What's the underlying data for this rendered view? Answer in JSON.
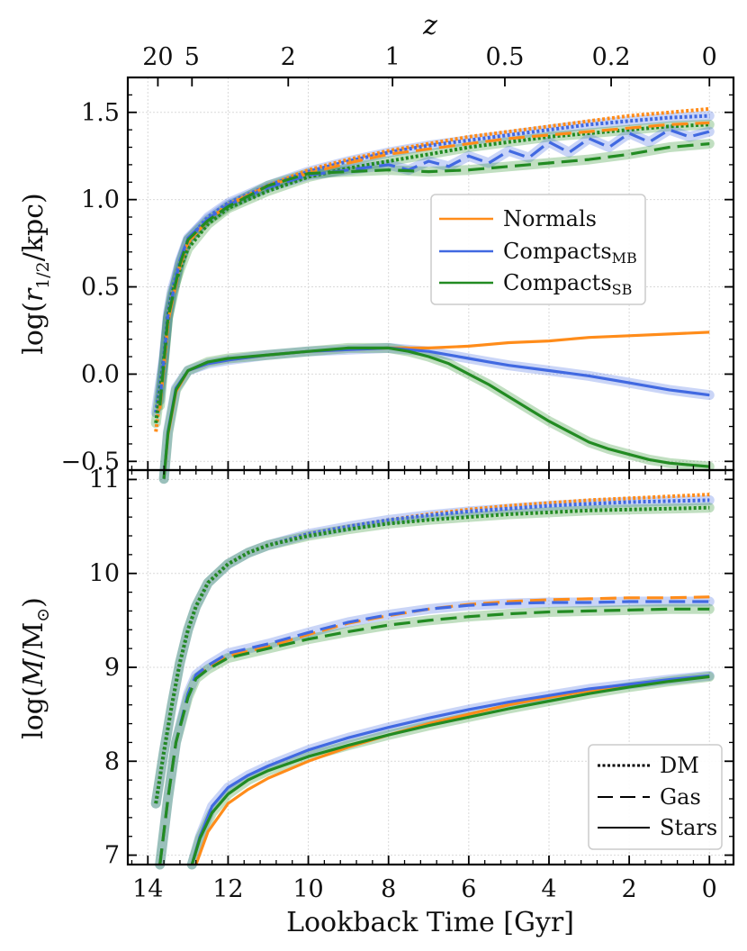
{
  "chart_data": [
    {
      "type": "line",
      "panel": "top",
      "title": "",
      "xlabel": "Lookback Time [Gyr]",
      "ylabel": "log(r1/2/kpc)",
      "ylabel_parts": [
        "log(",
        "r",
        "1/2",
        "/kpc)"
      ],
      "xlim": [
        14.5,
        -0.6
      ],
      "ylim": [
        -0.55,
        1.7
      ],
      "grid": true,
      "yticks": [
        -0.5,
        0.0,
        0.5,
        1.0,
        1.5
      ],
      "ytick_labels": [
        "−0.5",
        "0.0",
        "0.5",
        "1.0",
        "1.5"
      ],
      "top_axis": {
        "label": "z",
        "ticks": [
          {
            "t": 13.75,
            "label": "20"
          },
          {
            "t": 12.9,
            "label": "5"
          },
          {
            "t": 10.5,
            "label": "2"
          },
          {
            "t": 7.9,
            "label": "1"
          },
          {
            "t": 5.1,
            "label": "0.5"
          },
          {
            "t": 2.45,
            "label": "0.2"
          },
          {
            "t": 0.0,
            "label": "0"
          }
        ]
      },
      "legend": {
        "position": "center-right",
        "entries": [
          {
            "label": "Normals",
            "sub": "",
            "color": "#ff8c1a"
          },
          {
            "label": "Compacts",
            "sub": "MB",
            "color": "#4169e1"
          },
          {
            "label": "Compacts",
            "sub": "SB",
            "color": "#228b22"
          }
        ]
      },
      "series": [
        {
          "name": "Normals DM",
          "group": "Normals",
          "style": "dotted",
          "color": "#ff8c1a",
          "x": [
            13.8,
            13.6,
            13.5,
            13.4,
            13.2,
            13.0,
            12.5,
            12.0,
            11.0,
            10.0,
            9.0,
            8.0,
            7.0,
            6.0,
            5.0,
            4.0,
            3.0,
            2.0,
            1.0,
            0.0
          ],
          "y": [
            -0.33,
            0.05,
            0.3,
            0.45,
            0.62,
            0.75,
            0.88,
            0.97,
            1.08,
            1.17,
            1.23,
            1.28,
            1.32,
            1.36,
            1.39,
            1.42,
            1.45,
            1.48,
            1.5,
            1.52
          ]
        },
        {
          "name": "Compacts MB DM",
          "group": "Compacts MB",
          "style": "dotted",
          "color": "#4169e1",
          "x": [
            13.8,
            13.6,
            13.5,
            13.4,
            13.2,
            13.0,
            12.5,
            12.0,
            11.0,
            10.0,
            9.0,
            8.0,
            7.0,
            6.0,
            5.0,
            4.0,
            3.0,
            2.0,
            1.0,
            0.0
          ],
          "y": [
            -0.22,
            0.1,
            0.35,
            0.48,
            0.64,
            0.77,
            0.9,
            0.98,
            1.08,
            1.16,
            1.22,
            1.27,
            1.31,
            1.34,
            1.37,
            1.4,
            1.43,
            1.45,
            1.47,
            1.48
          ]
        },
        {
          "name": "Compacts SB DM",
          "group": "Compacts SB",
          "style": "dotted",
          "color": "#228b22",
          "x": [
            13.8,
            13.6,
            13.5,
            13.4,
            13.2,
            13.0,
            12.5,
            12.0,
            11.0,
            10.0,
            9.0,
            8.0,
            7.0,
            6.0,
            5.0,
            4.0,
            3.0,
            2.0,
            1.0,
            0.0
          ],
          "y": [
            -0.28,
            0.08,
            0.32,
            0.46,
            0.6,
            0.72,
            0.86,
            0.95,
            1.05,
            1.13,
            1.18,
            1.22,
            1.26,
            1.3,
            1.33,
            1.36,
            1.38,
            1.4,
            1.42,
            1.43
          ]
        },
        {
          "name": "Normals Gas",
          "group": "Normals",
          "style": "dashed",
          "color": "#ff8c1a",
          "x": [
            13.7,
            13.5,
            13.2,
            13.0,
            12.5,
            12.0,
            11.0,
            10.0,
            9.0,
            8.0,
            7.0,
            6.0,
            5.0,
            4.0,
            3.0,
            2.0,
            1.0,
            0.0
          ],
          "y": [
            -0.2,
            0.3,
            0.62,
            0.76,
            0.88,
            0.97,
            1.08,
            1.15,
            1.21,
            1.26,
            1.29,
            1.32,
            1.35,
            1.37,
            1.39,
            1.41,
            1.43,
            1.44
          ]
        },
        {
          "name": "Compacts MB Gas",
          "group": "Compacts MB",
          "style": "dashed",
          "color": "#4169e1",
          "x": [
            13.7,
            13.5,
            13.2,
            13.0,
            12.5,
            12.0,
            11.0,
            10.0,
            9.0,
            8.0,
            7.5,
            7.0,
            6.5,
            6.0,
            5.5,
            5.0,
            4.5,
            4.0,
            3.5,
            3.0,
            2.5,
            2.0,
            1.5,
            1.0,
            0.5,
            0.0
          ],
          "y": [
            -0.15,
            0.33,
            0.65,
            0.78,
            0.89,
            0.97,
            1.07,
            1.14,
            1.17,
            1.2,
            1.17,
            1.22,
            1.19,
            1.25,
            1.21,
            1.28,
            1.24,
            1.33,
            1.27,
            1.35,
            1.3,
            1.38,
            1.33,
            1.4,
            1.36,
            1.39
          ]
        },
        {
          "name": "Compacts SB Gas",
          "group": "Compacts SB",
          "style": "dashed",
          "color": "#228b22",
          "x": [
            13.7,
            13.5,
            13.2,
            13.0,
            12.5,
            12.0,
            11.0,
            10.0,
            9.0,
            8.0,
            7.0,
            6.0,
            5.0,
            4.0,
            3.0,
            2.0,
            1.0,
            0.0
          ],
          "y": [
            -0.18,
            0.32,
            0.63,
            0.77,
            0.88,
            0.96,
            1.08,
            1.15,
            1.16,
            1.17,
            1.16,
            1.17,
            1.19,
            1.21,
            1.23,
            1.26,
            1.3,
            1.32
          ]
        },
        {
          "name": "Normals Stars",
          "group": "Normals",
          "style": "solid",
          "color": "#ff8c1a",
          "x": [
            13.6,
            13.5,
            13.3,
            13.0,
            12.5,
            12.0,
            11.0,
            10.0,
            9.0,
            8.0,
            7.0,
            6.0,
            5.0,
            4.0,
            3.0,
            2.0,
            1.0,
            0.0
          ],
          "y": [
            -0.6,
            -0.35,
            -0.1,
            0.02,
            0.06,
            0.08,
            0.11,
            0.13,
            0.14,
            0.15,
            0.15,
            0.16,
            0.18,
            0.19,
            0.21,
            0.22,
            0.23,
            0.24
          ]
        },
        {
          "name": "Compacts MB Stars",
          "group": "Compacts MB",
          "style": "solid",
          "color": "#4169e1",
          "x": [
            13.6,
            13.5,
            13.3,
            13.0,
            12.5,
            12.0,
            11.0,
            10.0,
            9.0,
            8.0,
            7.5,
            7.0,
            6.5,
            6.0,
            5.5,
            5.0,
            4.0,
            3.0,
            2.0,
            1.0,
            0.0
          ],
          "y": [
            -0.6,
            -0.33,
            -0.08,
            0.02,
            0.06,
            0.08,
            0.11,
            0.13,
            0.14,
            0.15,
            0.14,
            0.13,
            0.11,
            0.09,
            0.07,
            0.05,
            0.02,
            -0.01,
            -0.05,
            -0.09,
            -0.12
          ]
        },
        {
          "name": "Compacts SB Stars",
          "group": "Compacts SB",
          "style": "solid",
          "color": "#228b22",
          "x": [
            13.6,
            13.5,
            13.3,
            13.0,
            12.5,
            12.0,
            11.0,
            10.0,
            9.0,
            8.0,
            7.5,
            7.0,
            6.5,
            6.0,
            5.5,
            5.0,
            4.5,
            4.0,
            3.5,
            3.0,
            2.5,
            2.0,
            1.5,
            1.0,
            0.5,
            0.0
          ],
          "y": [
            -0.6,
            -0.34,
            -0.09,
            0.02,
            0.07,
            0.09,
            0.11,
            0.13,
            0.15,
            0.15,
            0.13,
            0.1,
            0.06,
            0.0,
            -0.06,
            -0.13,
            -0.2,
            -0.27,
            -0.33,
            -0.39,
            -0.43,
            -0.46,
            -0.49,
            -0.51,
            -0.52,
            -0.53
          ]
        }
      ]
    },
    {
      "type": "line",
      "panel": "bottom",
      "title": "",
      "xlabel": "Lookback Time [Gyr]",
      "ylabel": "log(M/M⊙)",
      "ylabel_parts": [
        "log(",
        "M",
        "/M",
        "⊙",
        ")"
      ],
      "xlim": [
        14.5,
        -0.6
      ],
      "ylim": [
        6.9,
        11.1
      ],
      "grid": true,
      "xticks": [
        14,
        12,
        10,
        8,
        6,
        4,
        2,
        0
      ],
      "xtick_labels": [
        "14",
        "12",
        "10",
        "8",
        "6",
        "4",
        "2",
        "0"
      ],
      "yticks": [
        7,
        8,
        9,
        10,
        11
      ],
      "ytick_labels": [
        "7",
        "8",
        "9",
        "10",
        "11"
      ],
      "legend": {
        "position": "lower-right",
        "entries": [
          {
            "label": "DM",
            "style": "dotted"
          },
          {
            "label": "Gas",
            "style": "dashed"
          },
          {
            "label": "Stars",
            "style": "solid"
          }
        ]
      },
      "series": [
        {
          "name": "Normals DM",
          "group": "Normals",
          "style": "dotted",
          "color": "#ff8c1a",
          "x": [
            13.8,
            13.6,
            13.4,
            13.2,
            13.0,
            12.8,
            12.5,
            12.0,
            11.5,
            11.0,
            10.0,
            9.0,
            8.0,
            7.0,
            6.0,
            5.0,
            4.0,
            3.0,
            2.0,
            1.0,
            0.0
          ],
          "y": [
            7.55,
            8.1,
            8.6,
            9.05,
            9.4,
            9.65,
            9.9,
            10.1,
            10.22,
            10.3,
            10.42,
            10.5,
            10.57,
            10.63,
            10.68,
            10.72,
            10.75,
            10.78,
            10.8,
            10.82,
            10.84
          ]
        },
        {
          "name": "Compacts MB DM",
          "group": "Compacts MB",
          "style": "dotted",
          "color": "#4169e1",
          "x": [
            13.8,
            13.6,
            13.4,
            13.2,
            13.0,
            12.8,
            12.5,
            12.0,
            11.5,
            11.0,
            10.0,
            9.0,
            8.0,
            7.0,
            6.0,
            5.0,
            4.0,
            3.0,
            2.0,
            1.0,
            0.0
          ],
          "y": [
            7.55,
            8.1,
            8.6,
            9.05,
            9.4,
            9.65,
            9.9,
            10.1,
            10.22,
            10.3,
            10.42,
            10.5,
            10.57,
            10.62,
            10.66,
            10.69,
            10.72,
            10.74,
            10.76,
            10.77,
            10.78
          ]
        },
        {
          "name": "Compacts SB DM",
          "group": "Compacts SB",
          "style": "dotted",
          "color": "#228b22",
          "x": [
            13.8,
            13.6,
            13.4,
            13.2,
            13.0,
            12.8,
            12.5,
            12.0,
            11.5,
            11.0,
            10.0,
            9.0,
            8.0,
            7.0,
            6.0,
            5.0,
            4.0,
            3.0,
            2.0,
            1.0,
            0.0
          ],
          "y": [
            7.55,
            8.1,
            8.6,
            9.05,
            9.4,
            9.65,
            9.9,
            10.1,
            10.22,
            10.3,
            10.4,
            10.47,
            10.53,
            10.57,
            10.6,
            10.63,
            10.65,
            10.67,
            10.68,
            10.69,
            10.7
          ]
        },
        {
          "name": "Normals Gas",
          "group": "Normals",
          "style": "dashed",
          "color": "#ff8c1a",
          "x": [
            13.7,
            13.5,
            13.3,
            13.0,
            12.8,
            12.5,
            12.0,
            11.0,
            10.0,
            9.0,
            8.0,
            7.0,
            6.0,
            5.0,
            4.0,
            3.0,
            2.0,
            1.0,
            0.0
          ],
          "y": [
            6.9,
            7.6,
            8.2,
            8.7,
            8.9,
            9.0,
            9.12,
            9.22,
            9.35,
            9.47,
            9.55,
            9.62,
            9.67,
            9.7,
            9.72,
            9.73,
            9.74,
            9.74,
            9.75
          ]
        },
        {
          "name": "Compacts MB Gas",
          "group": "Compacts MB",
          "style": "dashed",
          "color": "#4169e1",
          "x": [
            13.7,
            13.5,
            13.3,
            13.0,
            12.8,
            12.5,
            12.0,
            11.0,
            10.0,
            9.0,
            8.0,
            7.0,
            6.0,
            5.0,
            4.0,
            3.0,
            2.0,
            1.0,
            0.0
          ],
          "y": [
            6.9,
            7.6,
            8.2,
            8.72,
            8.92,
            9.02,
            9.15,
            9.25,
            9.37,
            9.48,
            9.56,
            9.62,
            9.66,
            9.68,
            9.69,
            9.69,
            9.7,
            9.7,
            9.7
          ]
        },
        {
          "name": "Compacts SB Gas",
          "group": "Compacts SB",
          "style": "dashed",
          "color": "#228b22",
          "x": [
            13.7,
            13.5,
            13.3,
            13.0,
            12.8,
            12.5,
            12.0,
            11.0,
            10.0,
            9.0,
            8.0,
            7.0,
            6.0,
            5.0,
            4.0,
            3.0,
            2.0,
            1.0,
            0.0
          ],
          "y": [
            6.9,
            7.6,
            8.2,
            8.68,
            8.88,
            8.98,
            9.1,
            9.2,
            9.3,
            9.38,
            9.45,
            9.5,
            9.54,
            9.57,
            9.59,
            9.6,
            9.61,
            9.62,
            9.62
          ]
        },
        {
          "name": "Normals Stars",
          "group": "Normals",
          "style": "solid",
          "color": "#ff8c1a",
          "x": [
            12.8,
            12.5,
            12.0,
            11.5,
            11.0,
            10.0,
            9.0,
            8.0,
            7.0,
            6.0,
            5.0,
            4.0,
            3.0,
            2.0,
            1.0,
            0.0
          ],
          "y": [
            6.9,
            7.25,
            7.55,
            7.7,
            7.82,
            8.0,
            8.15,
            8.28,
            8.4,
            8.5,
            8.6,
            8.68,
            8.75,
            8.81,
            8.86,
            8.9
          ]
        },
        {
          "name": "Compacts MB Stars",
          "group": "Compacts MB",
          "style": "solid",
          "color": "#4169e1",
          "x": [
            12.9,
            12.7,
            12.4,
            12.0,
            11.5,
            11.0,
            10.0,
            9.0,
            8.0,
            7.0,
            6.0,
            5.0,
            4.0,
            3.0,
            2.0,
            1.0,
            0.0
          ],
          "y": [
            6.9,
            7.2,
            7.52,
            7.72,
            7.85,
            7.95,
            8.12,
            8.25,
            8.36,
            8.46,
            8.55,
            8.63,
            8.7,
            8.77,
            8.82,
            8.87,
            8.91
          ]
        },
        {
          "name": "Compacts SB Stars",
          "group": "Compacts SB",
          "style": "solid",
          "color": "#228b22",
          "x": [
            12.9,
            12.7,
            12.4,
            12.0,
            11.5,
            11.0,
            10.0,
            9.0,
            8.0,
            7.0,
            6.0,
            5.0,
            4.0,
            3.0,
            2.0,
            1.0,
            0.0
          ],
          "y": [
            6.9,
            7.18,
            7.45,
            7.65,
            7.8,
            7.9,
            8.05,
            8.17,
            8.28,
            8.38,
            8.47,
            8.56,
            8.64,
            8.72,
            8.79,
            8.85,
            8.9
          ]
        }
      ]
    }
  ]
}
